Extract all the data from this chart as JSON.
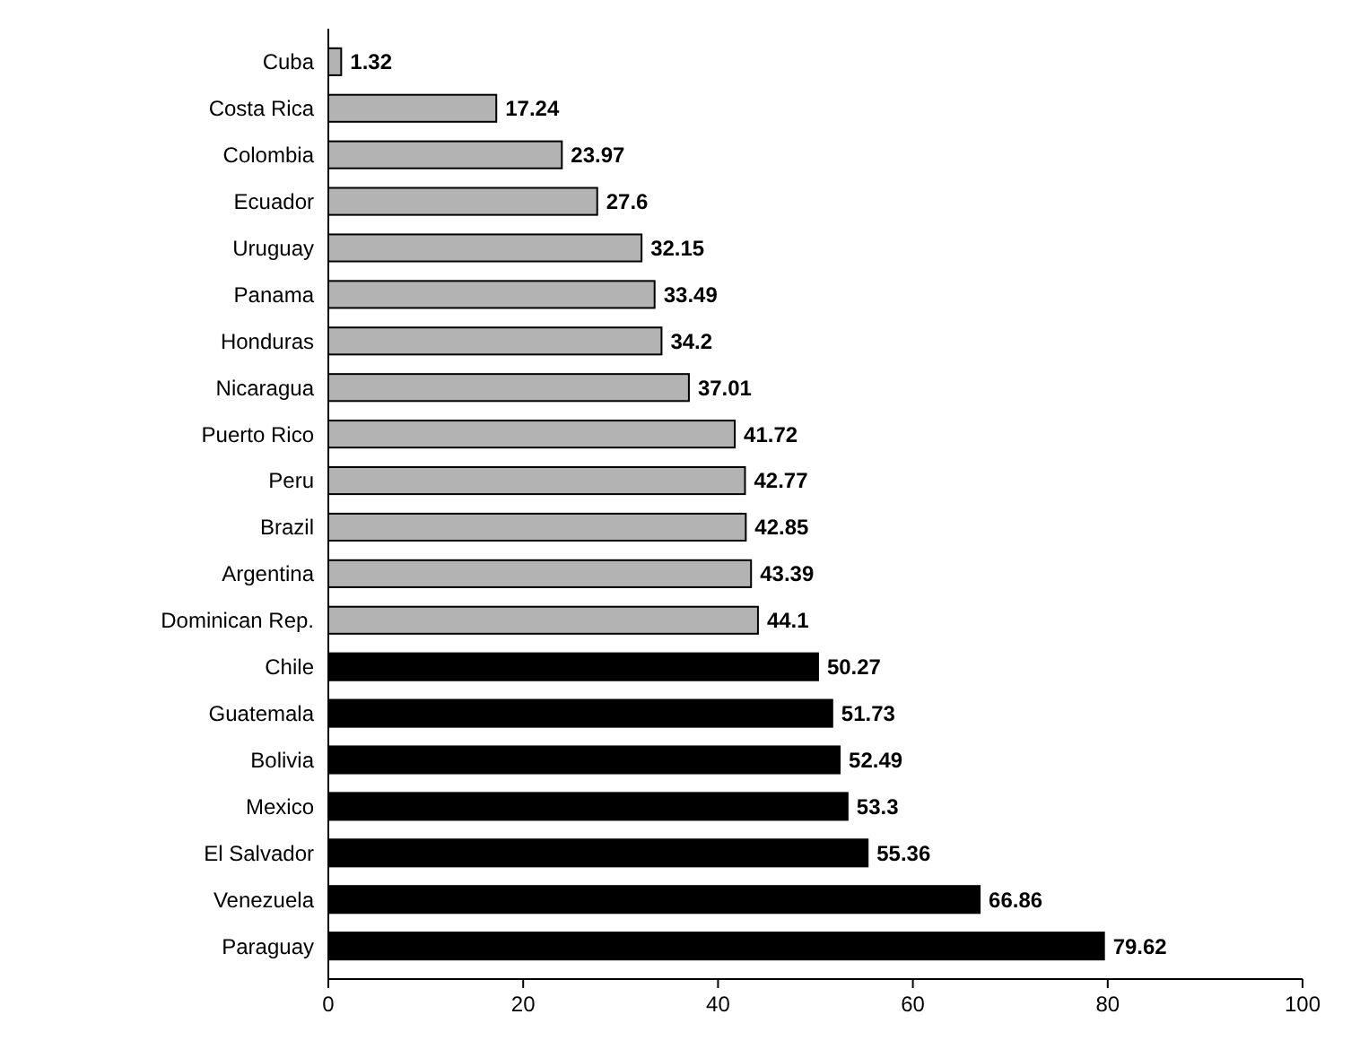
{
  "chart_data": {
    "type": "bar",
    "orientation": "horizontal",
    "categories": [
      "Cuba",
      "Costa Rica",
      "Colombia",
      "Ecuador",
      "Uruguay",
      "Panama",
      "Honduras",
      "Nicaragua",
      "Puerto Rico",
      "Peru",
      "Brazil",
      "Argentina",
      "Dominican Rep.",
      "Chile",
      "Guatemala",
      "Bolivia",
      "Mexico",
      "El Salvador",
      "Venezuela",
      "Paraguay"
    ],
    "values": [
      1.32,
      17.24,
      23.97,
      27.6,
      32.15,
      33.49,
      34.2,
      37.01,
      41.72,
      42.77,
      42.85,
      43.39,
      44.1,
      50.27,
      51.73,
      52.49,
      53.3,
      55.36,
      66.86,
      79.62
    ],
    "colors": [
      "#b3b3b3",
      "#b3b3b3",
      "#b3b3b3",
      "#b3b3b3",
      "#b3b3b3",
      "#b3b3b3",
      "#b3b3b3",
      "#b3b3b3",
      "#b3b3b3",
      "#b3b3b3",
      "#b3b3b3",
      "#b3b3b3",
      "#b3b3b3",
      "#000000",
      "#000000",
      "#000000",
      "#000000",
      "#000000",
      "#000000",
      "#000000"
    ],
    "xlim": [
      0,
      100
    ],
    "xticks": [
      0,
      20,
      40,
      60,
      80,
      100
    ],
    "data_labels": true
  }
}
